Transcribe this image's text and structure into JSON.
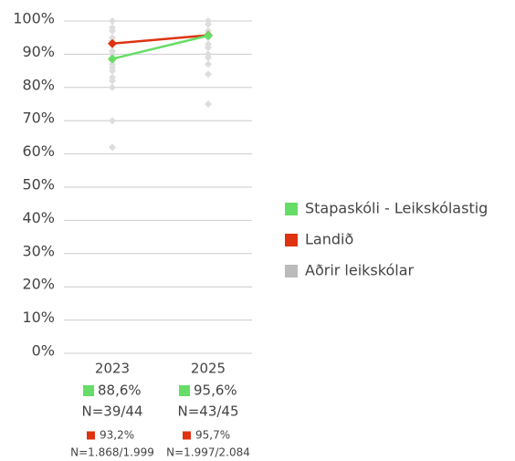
{
  "chart_data": {
    "type": "line",
    "categories": [
      "2023",
      "2025"
    ],
    "ylim": [
      0,
      100
    ],
    "yticks": [
      {
        "value": 0,
        "label": "0%"
      },
      {
        "value": 10,
        "label": "10%"
      },
      {
        "value": 20,
        "label": "20%"
      },
      {
        "value": 30,
        "label": "30%"
      },
      {
        "value": 40,
        "label": "40%"
      },
      {
        "value": 50,
        "label": "50%"
      },
      {
        "value": 60,
        "label": "60%"
      },
      {
        "value": 70,
        "label": "70%"
      },
      {
        "value": 80,
        "label": "80%"
      },
      {
        "value": 90,
        "label": "90%"
      },
      {
        "value": 100,
        "label": "100%"
      }
    ],
    "grid": true,
    "legend": "right",
    "series": [
      {
        "name": "Stapaskóli - Leikskólastig",
        "color": "#66dd66",
        "values": [
          88.6,
          95.6
        ],
        "value_labels": [
          "88,6%",
          "95,6%"
        ],
        "n_labels": [
          "N=39/44",
          "N=43/45"
        ]
      },
      {
        "name": "Landið",
        "color": "#dd3311",
        "values": [
          93.2,
          95.7
        ],
        "value_labels": [
          "93,2%",
          "95,7%"
        ],
        "n_labels": [
          "N=1.868/1.999",
          "N=1.997/2.084"
        ]
      },
      {
        "name": "Aðrir leikskólar",
        "color": "#bbbbbb",
        "values": [
          [
            100,
            98,
            97,
            95,
            94,
            93,
            91,
            90,
            88,
            87,
            86,
            85,
            83,
            82,
            80,
            70,
            62
          ],
          [
            100,
            99,
            97,
            96,
            95,
            93,
            92,
            90,
            89,
            87,
            84,
            75
          ]
        ]
      }
    ]
  }
}
